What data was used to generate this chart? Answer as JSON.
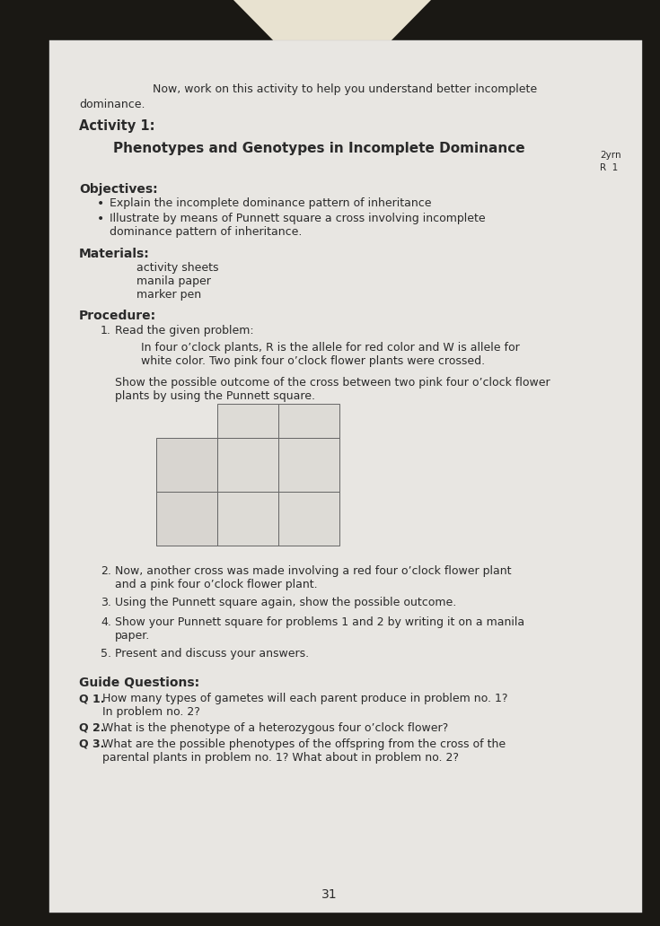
{
  "bg_outer": "#1a1814",
  "bg_spine": "#e8e2d0",
  "page_color": "#e8e6e2",
  "text_color": "#2a2a2a",
  "line_color": "#666666",
  "title_text": "Phenotypes and Genotypes in Incomplete Dominance",
  "activity_label": "Activity 1:",
  "objectives_label": "Objectives:",
  "bullet1": "Explain the incomplete dominance pattern of inheritance",
  "bullet2a": "Illustrate by means of Punnett square a cross involving incomplete",
  "bullet2b": "dominance pattern of inheritance.",
  "materials_label": "Materials:",
  "materials": [
    "activity sheets",
    "manila paper",
    "marker pen"
  ],
  "procedure_label": "Procedure:",
  "proc1_label": "Read the given problem:",
  "proc1_body1": "In four o’clock plants, R is the allele for red color and W is allele for",
  "proc1_body2": "white color. Two pink four o’clock flower plants were crossed.",
  "proc1_extra1": "Show the possible outcome of the cross between two pink four o’clock flower",
  "proc1_extra2": "plants by using the Punnett square.",
  "proc2a": "Now, another cross was made involving a red four o’clock flower plant",
  "proc2b": "and a pink four o’clock flower plant.",
  "proc3": "Using the Punnett square again, show the possible outcome.",
  "proc4a": "Show your Punnett square for problems 1 and 2 by writing it on a manila",
  "proc4b": "paper.",
  "proc5": "Present and discuss your answers.",
  "guide_label": "Guide Questions:",
  "q1a": "How many types of gametes will each parent produce in problem no. 1?",
  "q1b": "In problem no. 2?",
  "q2": "What is the phenotype of a heterozygous four o’clock flower?",
  "q3a": "What are the possible phenotypes of the offspring from the cross of the",
  "q3b": "parental plants in problem no. 1? What about in problem no. 2?",
  "page_number": "31",
  "corner_text1": "2yrn",
  "corner_text2": "R  1",
  "intro1": "Now, work on this activity to help you understand better incomplete",
  "intro2": "dominance."
}
